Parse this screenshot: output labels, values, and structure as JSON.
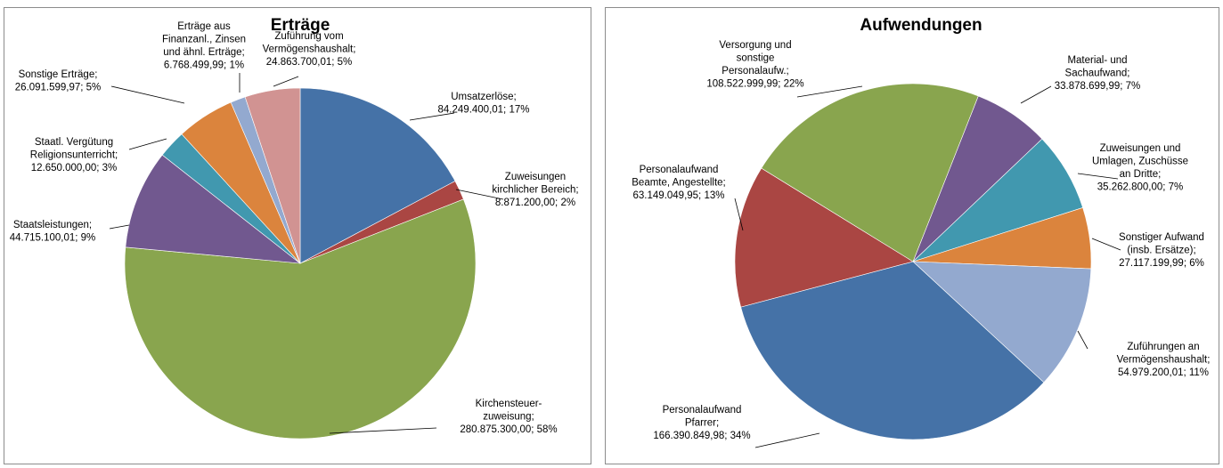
{
  "chart_data": [
    {
      "type": "pie",
      "title": "Erträge",
      "slices": [
        {
          "label": [
            "Umsatzerlöse;",
            "84.249.400,01; 17%"
          ],
          "value": 84249400.01,
          "color": "#4572A7"
        },
        {
          "label": [
            "Zuweisungen",
            "kirchlicher Bereich;",
            "8.871.200,00; 2%"
          ],
          "value": 8871200.0,
          "color": "#AA4643"
        },
        {
          "label": [
            "Kirchensteuer-",
            "zuweisung;",
            "280.875.300,00; 58%"
          ],
          "value": 280875300.0,
          "color": "#89A54E"
        },
        {
          "label": [
            "Staatsleistungen;",
            "44.715.100,01; 9%"
          ],
          "value": 44715100.01,
          "color": "#71588F"
        },
        {
          "label": [
            "Staatl. Vergütung",
            "Religionsunterricht;",
            "12.650.000,00; 3%"
          ],
          "value": 12650000.0,
          "color": "#4198AF"
        },
        {
          "label": [
            "Sonstige Erträge;",
            "26.091.599,97; 5%"
          ],
          "value": 26091599.97,
          "color": "#DB843D"
        },
        {
          "label": [
            "Erträge aus",
            "Finanzanl., Zinsen",
            "und ähnl. Erträge;",
            "6.768.499,99; 1%"
          ],
          "value": 6768499.99,
          "color": "#93A9CF"
        },
        {
          "label": [
            "Zuführung vom",
            "Vermögenshaushalt;",
            "24.863.700,01; 5%"
          ],
          "value": 24863700.01,
          "color": "#D19392"
        }
      ]
    },
    {
      "type": "pie",
      "title": "Aufwendungen",
      "slices": [
        {
          "label": [
            "Material- und",
            "Sachaufwand;",
            "33.878.699,99; 7%"
          ],
          "value": 33878699.99,
          "color": "#71588F"
        },
        {
          "label": [
            "Zuweisungen und",
            "Umlagen, Zuschüsse",
            "an Dritte;",
            "35.262.800,00; 7%"
          ],
          "value": 35262800.0,
          "color": "#4198AF"
        },
        {
          "label": [
            "Sonstiger Aufwand",
            "(insb. Ersätze);",
            "27.117.199,99; 6%"
          ],
          "value": 27117199.99,
          "color": "#DB843D"
        },
        {
          "label": [
            "Zuführungen an",
            "Vermögenshaushalt;",
            "54.979.200,01; 11%"
          ],
          "value": 54979200.01,
          "color": "#93A9CF"
        },
        {
          "label": [
            "Personalaufwand",
            "Pfarrer;",
            "166.390.849,98; 34%"
          ],
          "value": 166390849.98,
          "color": "#4572A7"
        },
        {
          "label": [
            "Personalaufwand",
            "Beamte, Angestellte;",
            "63.149.049,95; 13%"
          ],
          "value": 63149049.95,
          "color": "#AA4643"
        },
        {
          "label": [
            "Versorgung und",
            "sonstige",
            "Personalaufw.;",
            "108.522.999,99; 22%"
          ],
          "value": 108522999.99,
          "color": "#89A54E"
        }
      ]
    }
  ]
}
